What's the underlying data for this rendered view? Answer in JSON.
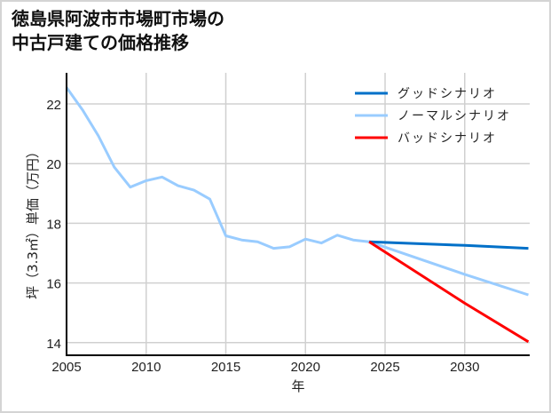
{
  "title_line1": "徳島県阿波市市場町市場の",
  "title_line2": "中古戸建ての価格推移",
  "colors": {
    "good": "#0070c8",
    "normal": "#99ccff",
    "bad": "#ff0000",
    "grid": "#d0d0d0",
    "axis": "#000000"
  },
  "chart_data": {
    "type": "line",
    "title": "徳島県阿波市市場町市場の中古戸建ての価格推移",
    "xlabel": "年",
    "ylabel": "坪（3.3㎡）単価（万円）",
    "xlim": [
      2005,
      2034
    ],
    "ylim": [
      13.6,
      22.9
    ],
    "x_ticks": [
      2005,
      2010,
      2015,
      2020,
      2025,
      2030
    ],
    "y_ticks": [
      14,
      16,
      18,
      20,
      22
    ],
    "grid": true,
    "legend_position": "upper right",
    "series": [
      {
        "name": "グッドシナリオ",
        "color": "#0070c8",
        "x": [
          2024,
          2030,
          2034
        ],
        "values": [
          17.38,
          17.26,
          17.16
        ]
      },
      {
        "name": "ノーマルシナリオ",
        "color": "#99ccff",
        "x": [
          2005,
          2006,
          2007,
          2008,
          2009,
          2010,
          2011,
          2012,
          2013,
          2014,
          2015,
          2016,
          2017,
          2018,
          2019,
          2020,
          2021,
          2022,
          2023,
          2024,
          2030,
          2034
        ],
        "values": [
          22.55,
          21.8,
          20.93,
          19.88,
          19.21,
          19.43,
          19.55,
          19.26,
          19.11,
          18.81,
          17.58,
          17.44,
          17.38,
          17.16,
          17.21,
          17.47,
          17.34,
          17.6,
          17.44,
          17.38,
          16.29,
          15.6
        ]
      },
      {
        "name": "バッドシナリオ",
        "color": "#ff0000",
        "x": [
          2024,
          2030,
          2034
        ],
        "values": [
          17.38,
          15.32,
          14.03
        ]
      }
    ]
  }
}
